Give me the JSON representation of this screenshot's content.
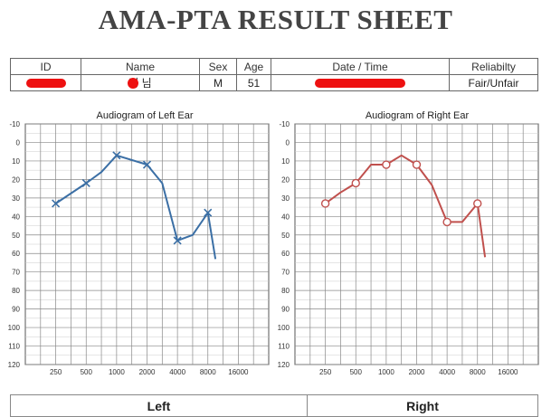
{
  "sheet_title": "AMA-PTA RESULT SHEET",
  "info": {
    "headers": {
      "id": "ID",
      "name": "Name",
      "sex": "Sex",
      "age": "Age",
      "datetime": "Date / Time",
      "reliability": "Reliabilty"
    },
    "values": {
      "name_visible": "정 님",
      "sex": "M",
      "age": "51",
      "reliability": "Fair/Unfair"
    }
  },
  "bottom_labels": {
    "left": "Left",
    "right": "Right"
  },
  "colors": {
    "left_ear": "#3b6fa5",
    "right_ear": "#c0504d",
    "grid": "#888888",
    "redaction": "#ee1111"
  },
  "chart_data": [
    {
      "type": "line",
      "title": "Audiogram of Left Ear",
      "x_categories": [
        "250",
        "500",
        "1000",
        "2000",
        "4000",
        "8000",
        "16000"
      ],
      "y_ticks": [
        "-10",
        "0",
        "10",
        "20",
        "30",
        "40",
        "50",
        "60",
        "70",
        "80",
        "90",
        "100",
        "110",
        "120"
      ],
      "ylim": [
        -10,
        120
      ],
      "y_inverted": true,
      "grid": true,
      "marker": "x",
      "series": [
        {
          "color": "#3b6fa5",
          "points": [
            {
              "x": 250,
              "y": 33
            },
            {
              "x": 500,
              "y": 22
            },
            {
              "x": 707,
              "y": 16
            },
            {
              "x": 1000,
              "y": 7
            },
            {
              "x": 2000,
              "y": 12
            },
            {
              "x": 2828,
              "y": 22
            },
            {
              "x": 4000,
              "y": 53
            },
            {
              "x": 5657,
              "y": 50
            },
            {
              "x": 8000,
              "y": 38
            },
            {
              "x": 9500,
              "y": 63
            }
          ],
          "marked_x": [
            250,
            500,
            1000,
            2000,
            4000,
            8000
          ]
        }
      ]
    },
    {
      "type": "line",
      "title": "Audiogram of Right Ear",
      "x_categories": [
        "250",
        "500",
        "1000",
        "2000",
        "4000",
        "8000",
        "16000"
      ],
      "y_ticks": [
        "-10",
        "0",
        "10",
        "20",
        "30",
        "40",
        "50",
        "60",
        "70",
        "80",
        "90",
        "100",
        "110",
        "120"
      ],
      "ylim": [
        -10,
        120
      ],
      "y_inverted": true,
      "grid": true,
      "marker": "o",
      "series": [
        {
          "color": "#c0504d",
          "points": [
            {
              "x": 250,
              "y": 33
            },
            {
              "x": 354,
              "y": 27
            },
            {
              "x": 500,
              "y": 22
            },
            {
              "x": 707,
              "y": 12
            },
            {
              "x": 1000,
              "y": 12
            },
            {
              "x": 1414,
              "y": 7
            },
            {
              "x": 2000,
              "y": 12
            },
            {
              "x": 2828,
              "y": 23
            },
            {
              "x": 4000,
              "y": 43
            },
            {
              "x": 5657,
              "y": 43
            },
            {
              "x": 8000,
              "y": 33
            },
            {
              "x": 9500,
              "y": 62
            }
          ],
          "marked_x": [
            250,
            500,
            1000,
            2000,
            4000,
            8000
          ]
        }
      ]
    }
  ]
}
